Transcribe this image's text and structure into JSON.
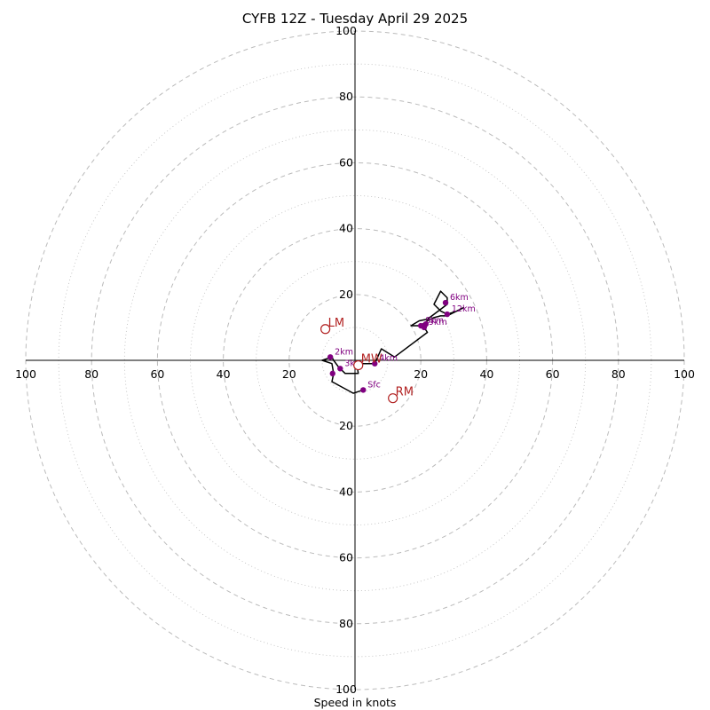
{
  "chart_data": {
    "type": "hodograph",
    "title": "CYFB 12Z - Tuesday April 29 2025",
    "xlabel": "Speed in knots",
    "ylabel": "",
    "xlim": [
      -100,
      100
    ],
    "ylim": [
      -100,
      100
    ],
    "rings": [
      20,
      40,
      60,
      80,
      100
    ],
    "minor_rings": [
      10,
      30,
      50,
      70,
      90
    ],
    "tick_values": [
      20,
      40,
      60,
      80,
      100
    ],
    "colors": {
      "trace": "#000000",
      "points": "#800080",
      "motion": "#b22222",
      "grid": "#bbbbbb",
      "axis": "#000000"
    },
    "trace": [
      [
        2.5,
        -9
      ],
      [
        -0.5,
        -10
      ],
      [
        -6,
        -7
      ],
      [
        -7,
        -6.5
      ],
      [
        -6.5,
        -4
      ],
      [
        -7,
        -1
      ],
      [
        -10,
        0
      ],
      [
        -7,
        1
      ],
      [
        -6.5,
        0
      ],
      [
        -5,
        -2
      ],
      [
        -3,
        -4
      ],
      [
        1,
        -4
      ],
      [
        0.5,
        -1
      ],
      [
        2.5,
        -1
      ],
      [
        4,
        -1
      ],
      [
        6,
        -1
      ],
      [
        8,
        3.5
      ],
      [
        12,
        1
      ],
      [
        22,
        8.5
      ],
      [
        21,
        10
      ],
      [
        19,
        10.5
      ],
      [
        17,
        10.5
      ],
      [
        19.5,
        12
      ],
      [
        22,
        12.5
      ],
      [
        24,
        14
      ],
      [
        28,
        17
      ],
      [
        28,
        19
      ],
      [
        26,
        21
      ],
      [
        24,
        17
      ],
      [
        26,
        15
      ],
      [
        28,
        14
      ],
      [
        31,
        15
      ],
      [
        33,
        16
      ],
      [
        28,
        13.5
      ],
      [
        26,
        13.5
      ],
      [
        24,
        13
      ],
      [
        22,
        12
      ],
      [
        20.5,
        11
      ],
      [
        19.5,
        10.5
      ],
      [
        17,
        10.5
      ]
    ],
    "points": [
      {
        "label": "Sfc",
        "x": 2.5,
        "y": -9
      },
      {
        "label": "2km",
        "x": -7.5,
        "y": 1
      },
      {
        "label": "3km",
        "x": -4.5,
        "y": -2.5
      },
      {
        "label": "",
        "x": -6.8,
        "y": -4
      },
      {
        "label": "4km",
        "x": 6,
        "y": -1
      },
      {
        "label": "8km",
        "x": 20,
        "y": 10.5
      },
      {
        "label": "9km",
        "x": 21,
        "y": 10
      },
      {
        "label": "",
        "x": 21.5,
        "y": 11
      },
      {
        "label": "12km",
        "x": 28,
        "y": 14
      },
      {
        "label": "6km",
        "x": 27.5,
        "y": 17.5
      }
    ],
    "motion_vectors": [
      {
        "label": "LM",
        "x": -9,
        "y": 9.5
      },
      {
        "label": "MW",
        "x": 1,
        "y": -1.5
      },
      {
        "label": "RM",
        "x": 11.5,
        "y": -11.5
      }
    ]
  }
}
